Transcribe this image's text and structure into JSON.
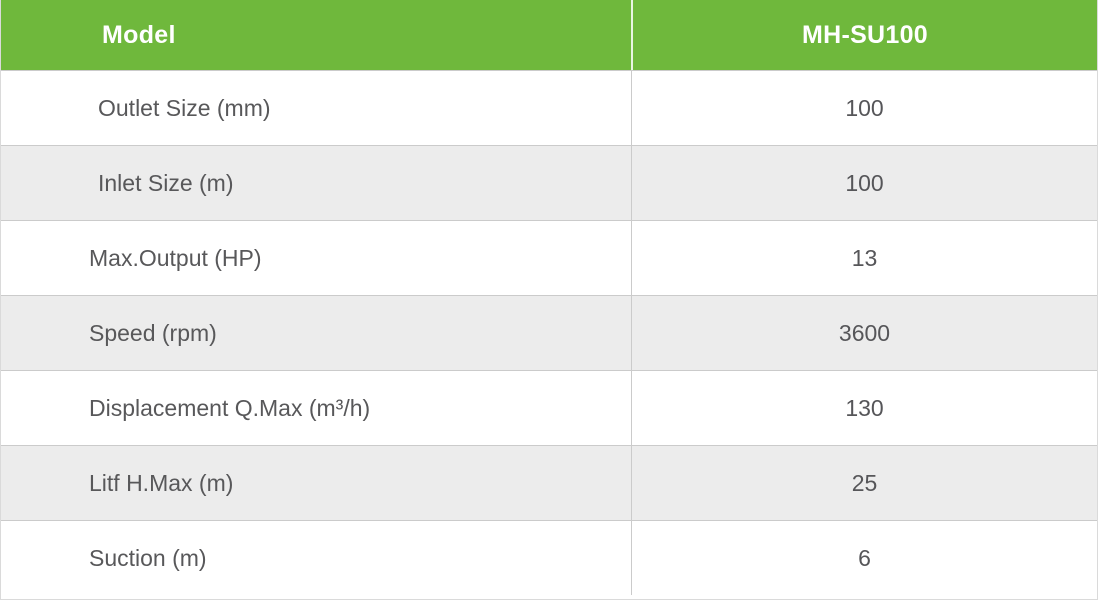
{
  "table": {
    "header": {
      "model_label": "Model",
      "model_value": "MH-SU100"
    },
    "rows": [
      {
        "label": "Outlet Size (mm)",
        "value": "100"
      },
      {
        "label": "Inlet Size (m)",
        "value": "100"
      },
      {
        "label": "Max.Output (HP)",
        "value": "13"
      },
      {
        "label": "Speed (rpm)",
        "value": "3600"
      },
      {
        "label": "Displacement Q.Max (m³/h)",
        "value": "130"
      },
      {
        "label": "Litf H.Max (m)",
        "value": "25"
      },
      {
        "label": "Suction (m)",
        "value": "6"
      }
    ],
    "colors": {
      "header_bg": "#6FB83C",
      "header_text": "#FFFFFF",
      "row_bg": "#FFFFFF",
      "row_alt_bg": "#ECECEC",
      "border": "#CBCBCB",
      "text": "#58585A"
    }
  }
}
